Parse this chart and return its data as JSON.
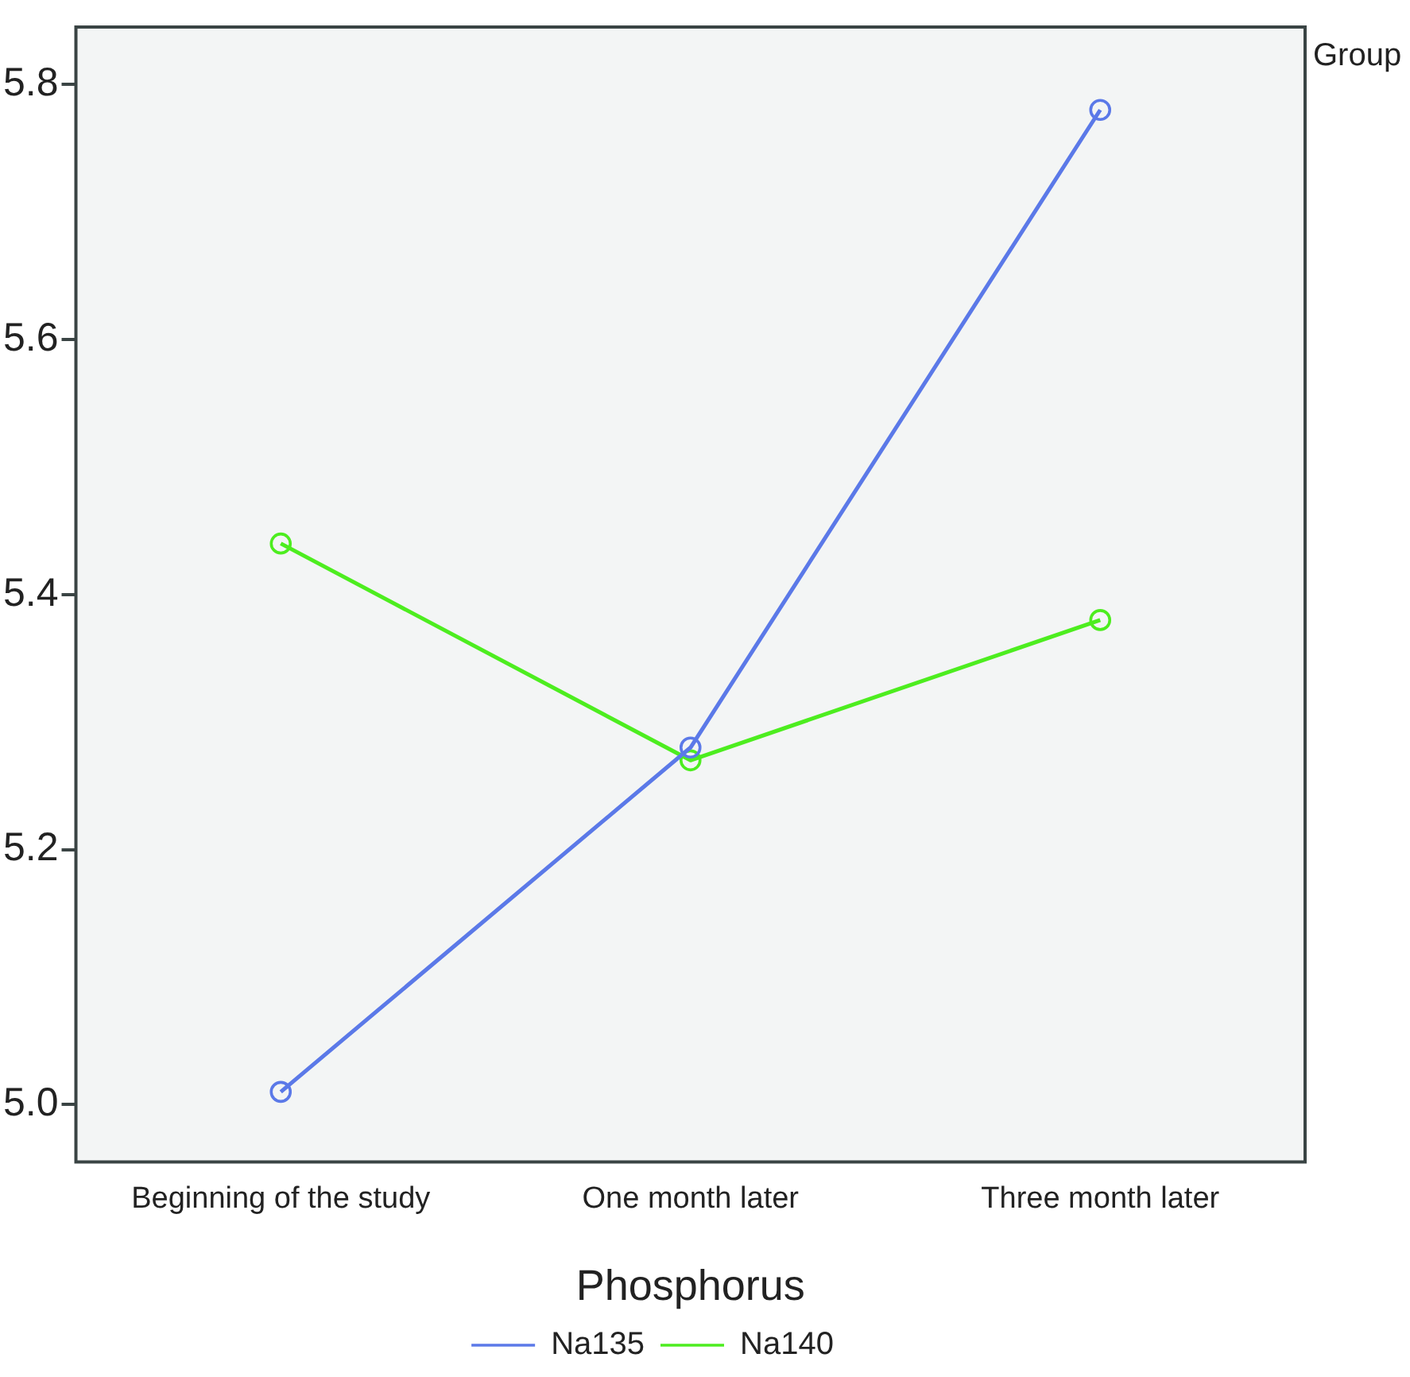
{
  "chart_data": {
    "type": "line",
    "xlabel": "Phosphorus",
    "legend_title": "Group",
    "categories": [
      "Beginning of the study",
      "One month later",
      "Three month later"
    ],
    "series": [
      {
        "name": "Na135",
        "color": "#5b79e8",
        "values": [
          5.01,
          5.28,
          5.78
        ]
      },
      {
        "name": "Na140",
        "color": "#4ded1f",
        "values": [
          5.44,
          5.27,
          5.38
        ]
      }
    ],
    "ylim": [
      4.955,
      5.845
    ],
    "yticks": [
      {
        "value": 5.0,
        "label": "5.0"
      },
      {
        "value": 5.2,
        "label": "5.2"
      },
      {
        "value": 5.4,
        "label": "5.4"
      },
      {
        "value": 5.6,
        "label": "5.6"
      },
      {
        "value": 5.8,
        "label": "5.8"
      }
    ],
    "legend": "bottom",
    "marker": "circle",
    "line_style": "solid"
  }
}
